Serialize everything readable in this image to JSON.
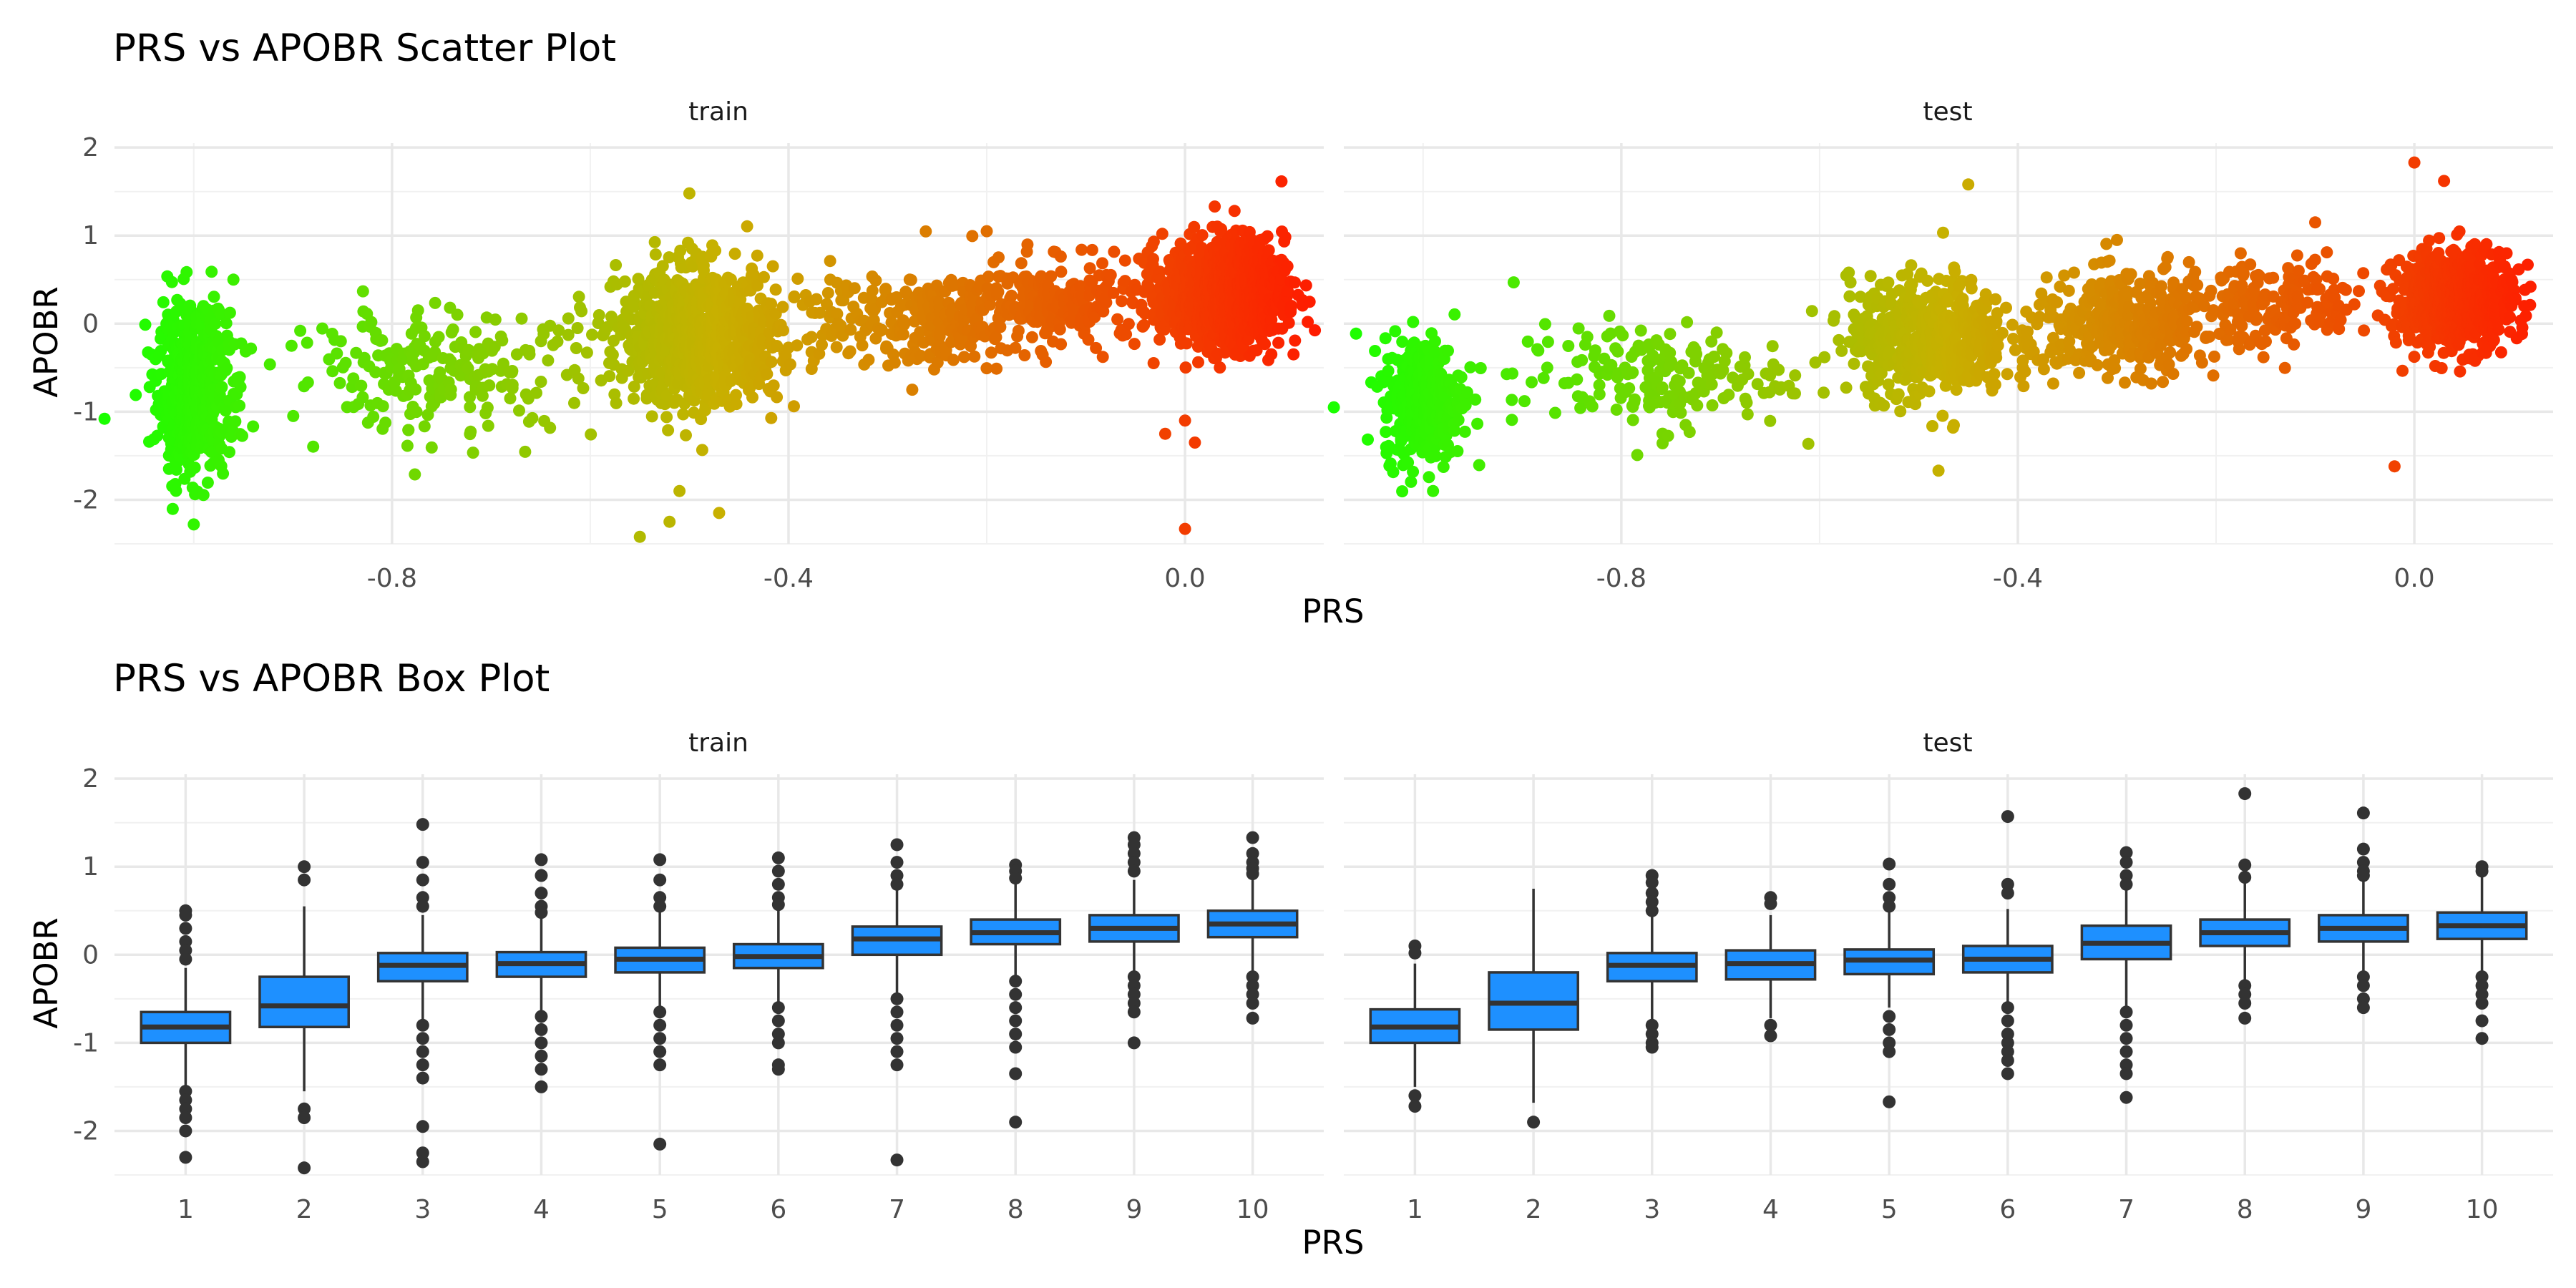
{
  "chart_data": [
    {
      "type": "scatter",
      "title": "PRS vs APOBR Scatter Plot",
      "xlabel": "PRS",
      "ylabel": "APOBR",
      "facets": [
        "train",
        "test"
      ],
      "xlim": [
        -1.08,
        0.14
      ],
      "ylim": [
        -2.5,
        2.05
      ],
      "x_ticks": [
        -0.8,
        -0.4,
        0.0
      ],
      "x_tick_labels": [
        "-0.8",
        "-0.4",
        "0.0"
      ],
      "y_ticks": [
        -2,
        -1,
        0,
        1,
        2
      ],
      "y_tick_labels": [
        "-2",
        "-1",
        "0",
        "1",
        "2"
      ],
      "grid": true,
      "color_gradient": {
        "low": "#1aff00",
        "mid": "#c8b000",
        "high": "#ff1a00",
        "maps": "PRS"
      },
      "clusters": {
        "train": [
          {
            "x": -1.0,
            "sx": 0.018,
            "y": -0.75,
            "sy": 0.45,
            "n": 650
          },
          {
            "x": -0.75,
            "sx": 0.08,
            "y": -0.55,
            "sy": 0.35,
            "n": 230
          },
          {
            "x": -0.49,
            "sx": 0.04,
            "y": -0.15,
            "sy": 0.38,
            "n": 900
          },
          {
            "x": -0.28,
            "sx": 0.07,
            "y": 0.05,
            "sy": 0.28,
            "n": 260
          },
          {
            "x": -0.12,
            "sx": 0.06,
            "y": 0.25,
            "sy": 0.25,
            "n": 260
          },
          {
            "x": 0.04,
            "sx": 0.03,
            "y": 0.33,
            "sy": 0.3,
            "n": 1100
          }
        ],
        "test": [
          {
            "x": -1.0,
            "sx": 0.02,
            "y": -0.85,
            "sy": 0.35,
            "n": 380
          },
          {
            "x": -0.77,
            "sx": 0.07,
            "y": -0.6,
            "sy": 0.3,
            "n": 190
          },
          {
            "x": -0.49,
            "sx": 0.04,
            "y": -0.15,
            "sy": 0.33,
            "n": 560
          },
          {
            "x": -0.29,
            "sx": 0.05,
            "y": -0.02,
            "sy": 0.28,
            "n": 380
          },
          {
            "x": -0.14,
            "sx": 0.05,
            "y": 0.22,
            "sy": 0.25,
            "n": 180
          },
          {
            "x": 0.04,
            "sx": 0.03,
            "y": 0.28,
            "sy": 0.28,
            "n": 650
          }
        ]
      },
      "outliers": {
        "train": [
          [
            -0.5,
            1.48
          ],
          [
            -0.51,
            -1.9
          ],
          [
            -0.52,
            -2.25
          ],
          [
            -0.55,
            -2.42
          ],
          [
            -0.47,
            -2.15
          ],
          [
            -1.0,
            -2.28
          ],
          [
            -0.96,
            0.5
          ],
          [
            -1.09,
            -1.08
          ],
          [
            0.0,
            -2.33
          ],
          [
            0.0,
            -1.1
          ],
          [
            0.03,
            1.33
          ],
          [
            0.01,
            -1.35
          ],
          [
            0.05,
            1.28
          ],
          [
            -0.2,
            1.05
          ],
          [
            -0.02,
            -1.25
          ]
        ],
        "test": [
          [
            -0.45,
            1.58
          ],
          [
            -0.48,
            -1.67
          ],
          [
            0.0,
            1.83
          ],
          [
            0.03,
            1.62
          ],
          [
            -0.02,
            -1.62
          ],
          [
            -0.1,
            1.15
          ],
          [
            -1.09,
            -0.95
          ],
          [
            -0.99,
            -1.9
          ],
          [
            -0.3,
            0.95
          ]
        ]
      }
    },
    {
      "type": "box",
      "title": "PRS vs APOBR Box Plot",
      "xlabel": "PRS",
      "ylabel": "APOBR",
      "facets": [
        "train",
        "test"
      ],
      "categories": [
        "1",
        "2",
        "3",
        "4",
        "5",
        "6",
        "7",
        "8",
        "9",
        "10"
      ],
      "ylim": [
        -2.5,
        2.05
      ],
      "y_ticks": [
        -2,
        -1,
        0,
        1,
        2
      ],
      "y_tick_labels": [
        "-2",
        "-1",
        "0",
        "1",
        "2"
      ],
      "grid": true,
      "box_color": "#1e90ff",
      "outline_color": "#333333",
      "boxes": {
        "train": [
          {
            "q1": -1.0,
            "median": -0.82,
            "q3": -0.65,
            "wlo": -1.5,
            "whi": -0.15,
            "outliers": [
              0.5,
              0.45,
              0.3,
              0.15,
              0.05,
              -0.05,
              -1.55,
              -1.65,
              -1.75,
              -1.85,
              -2.0,
              -2.3
            ]
          },
          {
            "q1": -0.82,
            "median": -0.58,
            "q3": -0.25,
            "wlo": -1.55,
            "whi": 0.55,
            "outliers": [
              1.0,
              0.85,
              -1.75,
              -1.85,
              -2.42
            ]
          },
          {
            "q1": -0.3,
            "median": -0.12,
            "q3": 0.02,
            "wlo": -0.75,
            "whi": 0.45,
            "outliers": [
              1.48,
              1.05,
              0.85,
              0.65,
              0.55,
              -0.8,
              -0.95,
              -1.1,
              -1.25,
              -1.4,
              -1.95,
              -2.25,
              -2.35
            ]
          },
          {
            "q1": -0.25,
            "median": -0.1,
            "q3": 0.03,
            "wlo": -0.65,
            "whi": 0.42,
            "outliers": [
              1.08,
              0.9,
              0.7,
              0.55,
              0.48,
              -0.7,
              -0.85,
              -1.0,
              -1.15,
              -1.3,
              -1.5
            ]
          },
          {
            "q1": -0.2,
            "median": -0.05,
            "q3": 0.08,
            "wlo": -0.62,
            "whi": 0.48,
            "outliers": [
              1.08,
              0.85,
              0.65,
              0.55,
              -0.65,
              -0.8,
              -0.95,
              -1.1,
              -1.25,
              -2.15
            ]
          },
          {
            "q1": -0.15,
            "median": -0.02,
            "q3": 0.12,
            "wlo": -0.55,
            "whi": 0.52,
            "outliers": [
              1.1,
              0.95,
              0.8,
              0.65,
              0.57,
              -0.6,
              -0.75,
              -0.9,
              -1.0,
              -1.25,
              -1.3
            ]
          },
          {
            "q1": 0.0,
            "median": 0.18,
            "q3": 0.32,
            "wlo": -0.45,
            "whi": 0.75,
            "outliers": [
              1.25,
              1.05,
              0.9,
              0.8,
              -0.5,
              -0.65,
              -0.8,
              -0.95,
              -1.1,
              -1.25,
              -2.33
            ]
          },
          {
            "q1": 0.12,
            "median": 0.25,
            "q3": 0.4,
            "wlo": -0.25,
            "whi": 0.8,
            "outliers": [
              1.02,
              0.95,
              0.87,
              -0.3,
              -0.45,
              -0.6,
              -0.75,
              -0.9,
              -1.05,
              -1.35,
              -1.9
            ]
          },
          {
            "q1": 0.15,
            "median": 0.3,
            "q3": 0.45,
            "wlo": -0.2,
            "whi": 0.85,
            "outliers": [
              1.33,
              1.25,
              1.15,
              1.05,
              0.95,
              -0.25,
              -0.35,
              -0.45,
              -0.55,
              -0.65,
              -1.0
            ]
          },
          {
            "q1": 0.2,
            "median": 0.35,
            "q3": 0.5,
            "wlo": -0.2,
            "whi": 0.88,
            "outliers": [
              1.33,
              1.15,
              1.05,
              0.98,
              0.92,
              -0.25,
              -0.35,
              -0.45,
              -0.55,
              -0.72
            ]
          }
        ],
        "test": [
          {
            "q1": -1.0,
            "median": -0.82,
            "q3": -0.62,
            "wlo": -1.5,
            "whi": -0.1,
            "outliers": [
              0.1,
              0.02,
              -1.6,
              -1.72
            ]
          },
          {
            "q1": -0.85,
            "median": -0.55,
            "q3": -0.2,
            "wlo": -1.68,
            "whi": 0.75,
            "outliers": [
              -1.9
            ]
          },
          {
            "q1": -0.3,
            "median": -0.12,
            "q3": 0.02,
            "wlo": -0.75,
            "whi": 0.45,
            "outliers": [
              0.9,
              0.82,
              0.7,
              0.6,
              0.5,
              -0.8,
              -0.9,
              -1.0,
              -1.05
            ]
          },
          {
            "q1": -0.28,
            "median": -0.1,
            "q3": 0.05,
            "wlo": -0.72,
            "whi": 0.45,
            "outliers": [
              0.65,
              0.58,
              -0.8,
              -0.92
            ]
          },
          {
            "q1": -0.22,
            "median": -0.06,
            "q3": 0.06,
            "wlo": -0.6,
            "whi": 0.48,
            "outliers": [
              1.03,
              0.8,
              0.65,
              0.55,
              -0.7,
              -0.85,
              -1.0,
              -1.1,
              -1.67
            ]
          },
          {
            "q1": -0.2,
            "median": -0.05,
            "q3": 0.1,
            "wlo": -0.6,
            "whi": 0.52,
            "outliers": [
              1.57,
              0.8,
              0.7,
              -0.6,
              -0.75,
              -0.9,
              -1.0,
              -1.1,
              -1.2,
              -1.35
            ]
          },
          {
            "q1": -0.05,
            "median": 0.13,
            "q3": 0.33,
            "wlo": -0.6,
            "whi": 0.75,
            "outliers": [
              1.16,
              1.05,
              0.9,
              0.8,
              -0.65,
              -0.8,
              -0.95,
              -1.1,
              -1.25,
              -1.35,
              -1.62
            ]
          },
          {
            "q1": 0.1,
            "median": 0.25,
            "q3": 0.4,
            "wlo": -0.3,
            "whi": 0.82,
            "outliers": [
              1.83,
              1.02,
              0.88,
              -0.35,
              -0.45,
              -0.55,
              -0.72
            ]
          },
          {
            "q1": 0.15,
            "median": 0.3,
            "q3": 0.45,
            "wlo": -0.2,
            "whi": 0.85,
            "outliers": [
              1.61,
              1.2,
              1.05,
              0.95,
              0.9,
              -0.25,
              -0.35,
              -0.5,
              -0.6
            ]
          },
          {
            "q1": 0.18,
            "median": 0.33,
            "q3": 0.48,
            "wlo": -0.2,
            "whi": 0.88,
            "outliers": [
              1.0,
              0.95,
              -0.25,
              -0.35,
              -0.45,
              -0.55,
              -0.75,
              -0.95
            ]
          }
        ]
      }
    }
  ]
}
